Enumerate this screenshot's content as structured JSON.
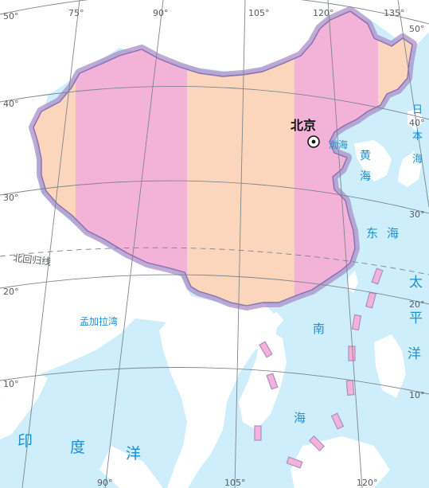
{
  "colors": {
    "sea": "#cdeefa",
    "land": "#ffffff",
    "zone_a": "#fbd6bd",
    "zone_b": "#f3b2d8",
    "border_glow": "#a98fc8",
    "grid": "#7e868a",
    "sea_text": "#1e8fd0"
  },
  "map": {
    "longitude_labels": [
      "75°",
      "90°",
      "105°",
      "120°",
      "135°"
    ],
    "bottom_longitude_labels": [
      "90°",
      "105°",
      "120°"
    ],
    "latitude_labels_left": [
      "50°",
      "40°",
      "30°",
      "20°",
      "10°"
    ],
    "latitude_labels_right": [
      "50°",
      "40°",
      "30°",
      "20°",
      "10°"
    ],
    "tropic_label": "北回归线",
    "capital": {
      "name": "北京"
    },
    "sea_labels": {
      "bohai": "渤海",
      "yellow_sea": [
        "黄",
        "海"
      ],
      "east_sea": [
        "东",
        "海"
      ],
      "south_sea": [
        "南",
        "海"
      ],
      "pacific": [
        "太",
        "平",
        "洋"
      ],
      "japan": [
        "日",
        "本",
        "海"
      ],
      "bengal": "孟加拉湾",
      "indian_ocean": [
        "印",
        "度",
        "洋"
      ]
    }
  }
}
